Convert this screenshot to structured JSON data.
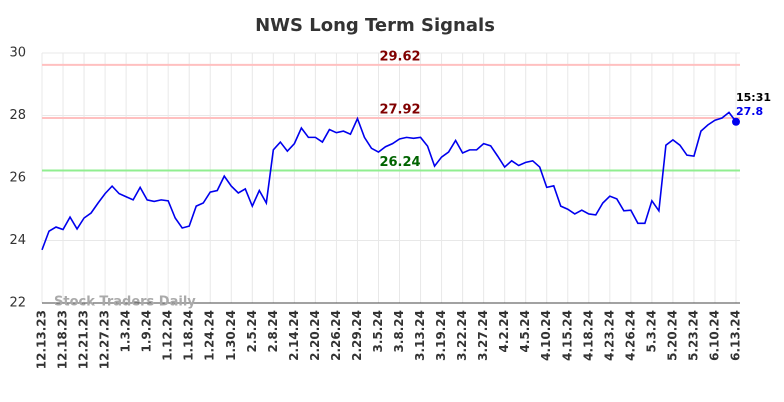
{
  "chart_data": {
    "type": "line",
    "title": "NWS Long Term Signals",
    "categories": [
      "12.13.23",
      null,
      null,
      "12.18.23",
      null,
      null,
      "12.21.23",
      null,
      null,
      "12.27.23",
      null,
      null,
      "1.3.24",
      null,
      null,
      "1.9.24",
      null,
      null,
      "1.12.24",
      null,
      null,
      "1.18.24",
      null,
      null,
      "1.24.24",
      null,
      null,
      "1.30.24",
      null,
      null,
      "2.5.24",
      null,
      null,
      "2.8.24",
      null,
      null,
      "2.14.24",
      null,
      null,
      "2.20.24",
      null,
      null,
      "2.26.24",
      null,
      null,
      "2.29.24",
      null,
      null,
      "3.5.24",
      null,
      null,
      "3.8.24",
      null,
      null,
      "3.13.24",
      null,
      null,
      "3.19.24",
      null,
      null,
      "3.22.24",
      null,
      null,
      "3.27.24",
      null,
      null,
      "4.2.24",
      null,
      null,
      "4.5.24",
      null,
      null,
      "4.10.24",
      null,
      null,
      "4.15.24",
      null,
      null,
      "4.18.24",
      null,
      null,
      "4.23.24",
      null,
      null,
      "4.26.24",
      null,
      null,
      "5.3.24",
      null,
      null,
      "5.20.24",
      null,
      null,
      "5.23.24",
      null,
      null,
      "6.10.24",
      null,
      null,
      "6.13.24"
    ],
    "values": [
      23.7,
      24.3,
      24.43,
      24.35,
      24.75,
      24.37,
      24.72,
      24.88,
      25.2,
      25.5,
      25.74,
      25.5,
      25.4,
      25.3,
      25.7,
      25.3,
      25.25,
      25.3,
      25.27,
      24.72,
      24.4,
      24.46,
      25.1,
      25.2,
      25.55,
      25.6,
      26.06,
      25.74,
      25.52,
      25.65,
      25.1,
      25.6,
      25.2,
      26.9,
      27.15,
      26.86,
      27.1,
      27.6,
      27.3,
      27.3,
      27.15,
      27.55,
      27.45,
      27.5,
      27.4,
      27.9,
      27.3,
      26.95,
      26.83,
      27.0,
      27.1,
      27.25,
      27.3,
      27.27,
      27.3,
      27.02,
      26.38,
      26.67,
      26.83,
      27.2,
      26.8,
      26.9,
      26.9,
      27.1,
      27.03,
      26.7,
      26.35,
      26.55,
      26.4,
      26.5,
      26.55,
      26.35,
      25.7,
      25.75,
      25.1,
      25.0,
      24.85,
      24.97,
      24.85,
      24.82,
      25.2,
      25.42,
      25.33,
      24.95,
      24.97,
      24.55,
      24.55,
      25.27,
      24.95,
      27.05,
      27.22,
      27.05,
      26.73,
      26.7,
      27.5,
      27.7,
      27.85,
      27.92,
      28.1,
      27.8
    ],
    "color": "#0000ee",
    "levels": [
      {
        "value": 29.62,
        "color": "#ffc0c0",
        "label_color": "#800000"
      },
      {
        "value": 27.92,
        "color": "#ffc0c0",
        "label_color": "#800000"
      },
      {
        "value": 26.24,
        "color": "#90ee90",
        "label_color": "#006400"
      }
    ],
    "last_time": "15:31",
    "watermark": "Stock Traders Daily",
    "ylim": [
      22,
      30
    ],
    "yticks": [
      22,
      24,
      26,
      28,
      30
    ],
    "grid": true
  }
}
